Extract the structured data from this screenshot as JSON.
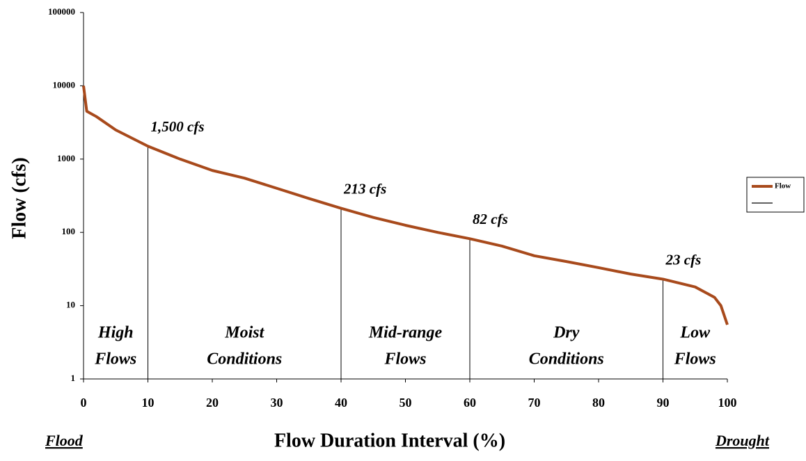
{
  "chart_data": {
    "type": "line",
    "xlabel": "Flow Duration Interval (%)",
    "ylabel": "Flow (cfs)",
    "x": [
      0,
      0.5,
      2,
      5,
      10,
      15,
      20,
      25,
      30,
      35,
      40,
      45,
      50,
      55,
      60,
      65,
      70,
      75,
      80,
      85,
      90,
      95,
      98,
      99,
      100
    ],
    "series": [
      {
        "name": "Flow",
        "color": "#a84a1c",
        "values": [
          10000,
          4500,
          3800,
          2500,
          1500,
          1000,
          700,
          550,
          400,
          290,
          213,
          160,
          125,
          100,
          82,
          65,
          48,
          40,
          33,
          27,
          23,
          18,
          13,
          10,
          5.5
        ]
      }
    ],
    "xlim": [
      0,
      100
    ],
    "xticks": [
      0,
      10,
      20,
      30,
      40,
      50,
      60,
      70,
      80,
      90,
      100
    ],
    "ylim": [
      1,
      100000
    ],
    "yticks": [
      1,
      10,
      100,
      1000,
      10000,
      100000
    ],
    "log_y": true,
    "annotations": [
      {
        "x": 10,
        "value": 1500,
        "label": "1,500 cfs"
      },
      {
        "x": 40,
        "value": 213,
        "label": "213 cfs"
      },
      {
        "x": 60,
        "value": 82,
        "label": "82 cfs"
      },
      {
        "x": 90,
        "value": 23,
        "label": "23 cfs"
      }
    ],
    "zones": [
      [
        "High",
        "Flows"
      ],
      [
        "Moist",
        "Conditions"
      ],
      [
        "Mid-range",
        "Flows"
      ],
      [
        "Dry",
        "Conditions"
      ],
      [
        "Low",
        "Flows"
      ]
    ],
    "left_note": "Flood",
    "right_note": "Drought",
    "legend": "right"
  }
}
